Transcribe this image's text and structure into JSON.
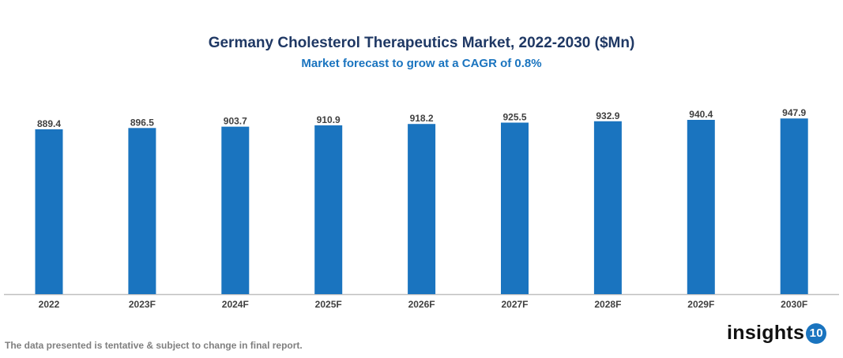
{
  "chart_data": {
    "type": "bar",
    "title": "Germany Cholesterol Therapeutics Market, 2022-2030 ($Mn)",
    "subtitle": "Market forecast to grow at a CAGR of 0.8%",
    "categories": [
      "2022",
      "2023F",
      "2024F",
      "2025F",
      "2026F",
      "2027F",
      "2028F",
      "2029F",
      "2030F"
    ],
    "values": [
      889.4,
      896.5,
      903.7,
      910.9,
      918.2,
      925.5,
      932.9,
      940.4,
      947.9
    ],
    "xlabel": "",
    "ylabel": "",
    "ylim": [
      0,
      1000
    ],
    "grid": false,
    "bar_color": "#1a74bf",
    "data_labels": true
  },
  "footer": {
    "note": "The data presented is tentative & subject to change in final report.",
    "logo_text": "insights",
    "logo_badge": "10"
  }
}
